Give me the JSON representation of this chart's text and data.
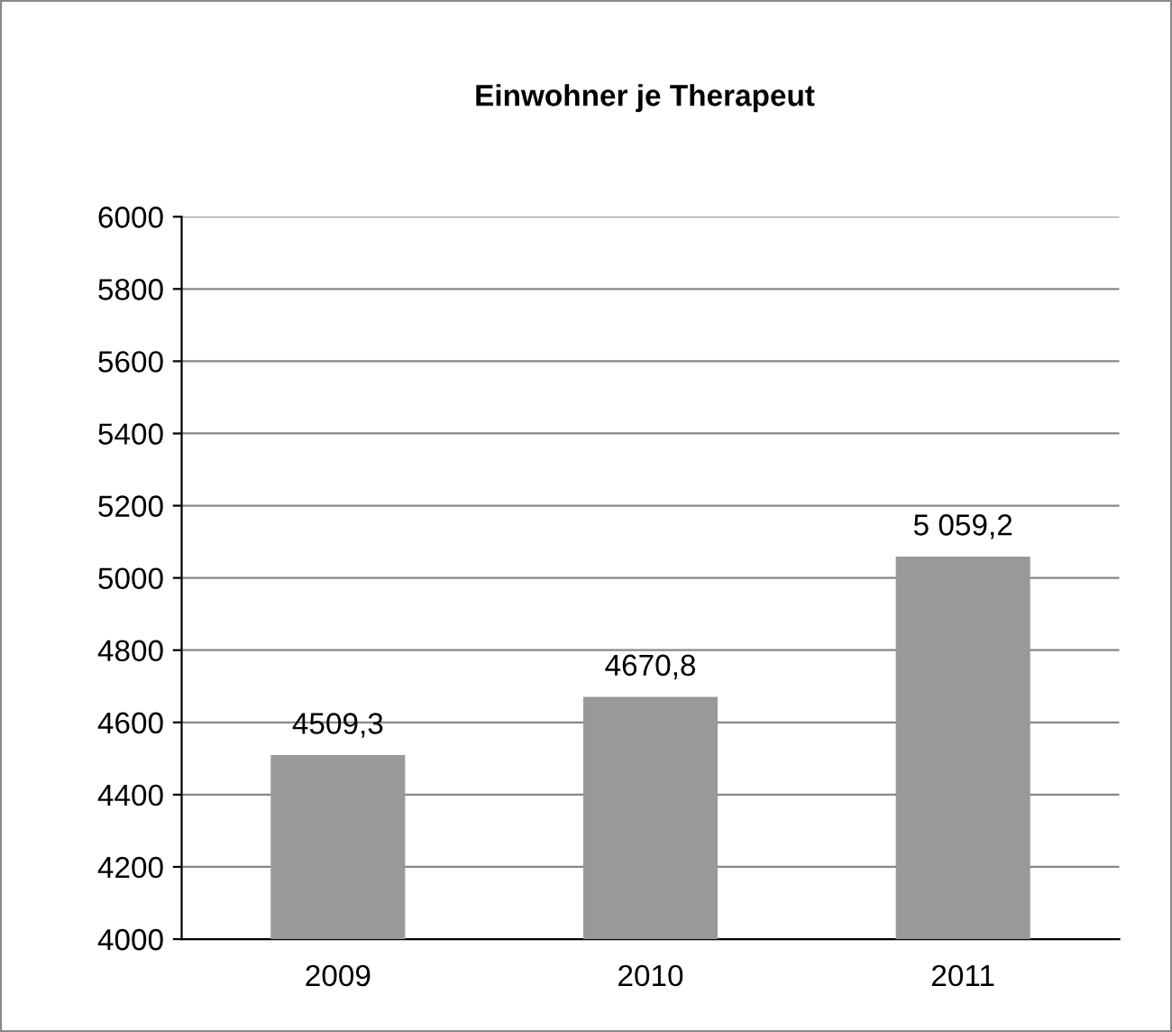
{
  "chart_data": {
    "type": "bar",
    "title": "Einwohner je Therapeut",
    "categories": [
      "2009",
      "2010",
      "2011"
    ],
    "values": [
      4509.3,
      4670.8,
      5059.2
    ],
    "value_labels": [
      "4509,3",
      "4670,8",
      "5 059,2"
    ],
    "color": "#999999",
    "ylim": [
      4000,
      6000
    ],
    "yticks": [
      4000,
      4200,
      4400,
      4600,
      4800,
      5000,
      5200,
      5400,
      5600,
      5800,
      6000
    ],
    "grid": "y"
  }
}
